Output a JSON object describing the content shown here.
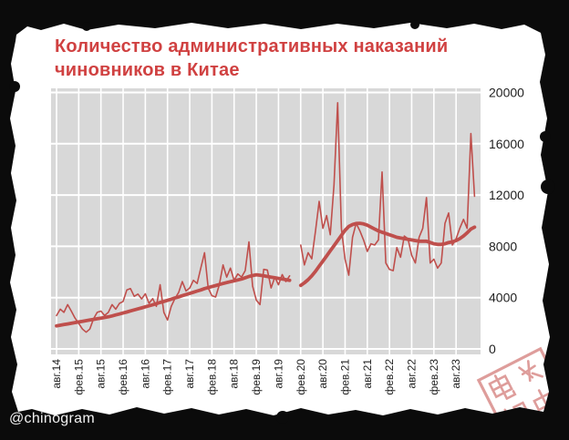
{
  "page": {
    "watermark": "@chinogram"
  },
  "title": {
    "line1": "Количество административных наказаний",
    "line2": "чиновников в Китае"
  },
  "colors": {
    "title": "#d04141",
    "line": "#bf4f4c",
    "plot_bg": "#d8d8d8",
    "grid": "#ffffff",
    "axis_label": "#1f1f1f",
    "frame": "#0b0b0b",
    "stamp": "#c95c58"
  },
  "stamp": {
    "characters": [
      "电",
      "报",
      "中"
    ]
  },
  "chart_data": {
    "type": "line",
    "title": "Количество административных наказаний чиновников в Китае",
    "x_start": "2014-08",
    "x_frequency": "monthly",
    "x_tick_labels": [
      "авг.14",
      "фев.15",
      "авг.15",
      "фев.16",
      "авг.16",
      "фев.17",
      "авг.17",
      "фев.18",
      "авг.18",
      "фев.19",
      "авг.19",
      "фев.20",
      "авг.20",
      "фев.21",
      "авг.21",
      "фев.22",
      "авг.22",
      "фев.23",
      "авг.23"
    ],
    "x_ticks_every_months": 6,
    "y_ticks": [
      0,
      4000,
      8000,
      12000,
      16000,
      20000
    ],
    "ylim": [
      0,
      20000
    ],
    "grid": true,
    "legend": false,
    "y_axis_side": "right",
    "series": [
      {
        "name": "monthly_punishments",
        "style": "thin",
        "values": [
          2600,
          3100,
          2850,
          3450,
          2950,
          2400,
          2000,
          1550,
          1300,
          1550,
          2350,
          2850,
          2950,
          2600,
          2850,
          3450,
          3100,
          3550,
          3700,
          4600,
          4700,
          4100,
          4280,
          3900,
          4300,
          3550,
          3920,
          3320,
          5000,
          2850,
          2250,
          3320,
          3920,
          4400,
          5250,
          4520,
          4750,
          5350,
          5100,
          6300,
          7500,
          4750,
          4150,
          4050,
          5000,
          6550,
          5600,
          6300,
          5350,
          5850,
          5600,
          6100,
          8350,
          4900,
          3800,
          3450,
          6200,
          6150,
          4750,
          5600,
          5000,
          5800,
          5250,
          5700,
          null,
          null,
          8100,
          6550,
          7500,
          7025,
          9200,
          11500,
          9400,
          10400,
          8900,
          12800,
          19200,
          9400,
          7000,
          5750,
          8700,
          9800,
          9200,
          8500,
          7600,
          8200,
          8100,
          8500,
          13800,
          6700,
          6200,
          6100,
          7900,
          7150,
          8800,
          8600,
          7300,
          6700,
          8700,
          9400,
          11800,
          6700,
          7000,
          6300,
          6700,
          9800,
          10600,
          8100,
          8600,
          9400,
          10100,
          9400,
          16800,
          11900
        ]
      },
      {
        "name": "trend_12m_average",
        "style": "thick",
        "values": [
          1800,
          1850,
          1900,
          1950,
          2000,
          2050,
          2100,
          2150,
          2200,
          2250,
          2300,
          2350,
          2400,
          2450,
          2500,
          2570,
          2650,
          2720,
          2800,
          2880,
          2960,
          3040,
          3120,
          3200,
          3280,
          3360,
          3440,
          3530,
          3620,
          3700,
          3790,
          3880,
          3970,
          4060,
          4150,
          4240,
          4330,
          4420,
          4510,
          4600,
          4700,
          4780,
          4860,
          4940,
          5020,
          5100,
          5170,
          5240,
          5310,
          5380,
          5450,
          5550,
          5650,
          5720,
          5780,
          5750,
          5700,
          5650,
          5600,
          5550,
          5500,
          5450,
          5400,
          5350,
          null,
          null,
          4950,
          5150,
          5400,
          5700,
          6050,
          6450,
          6850,
          7250,
          7650,
          8050,
          8450,
          8850,
          9250,
          9550,
          9700,
          9780,
          9800,
          9750,
          9650,
          9500,
          9350,
          9200,
          9100,
          9000,
          8900,
          8800,
          8700,
          8650,
          8600,
          8550,
          8500,
          8450,
          8400,
          8400,
          8400,
          8300,
          8200,
          8150,
          8150,
          8200,
          8300,
          8350,
          8450,
          8600,
          8800,
          9050,
          9350,
          9500
        ]
      }
    ]
  }
}
